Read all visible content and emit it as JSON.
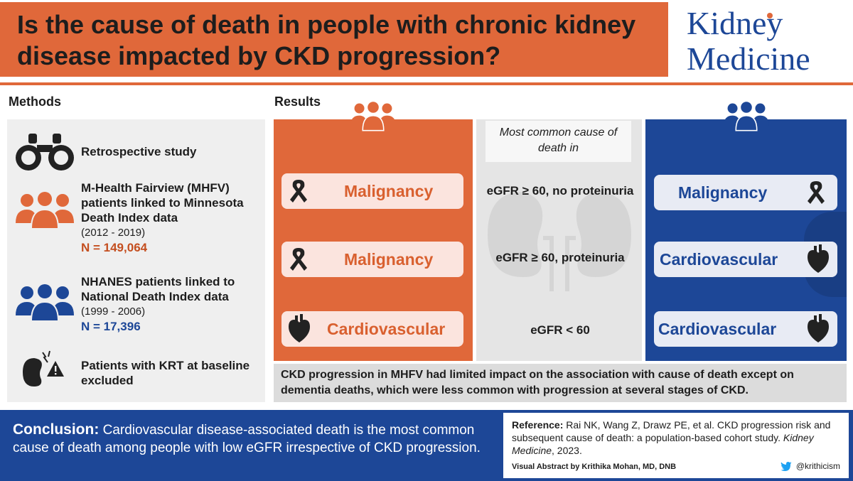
{
  "header": {
    "title": "Is the cause of death in people with chronic kidney disease impacted by CKD progression?",
    "logo_line1": "Kidney",
    "logo_line2": "Medicine"
  },
  "methods": {
    "label": "Methods",
    "items": [
      {
        "icon": "binoculars-icon",
        "text": "Retrospective study"
      },
      {
        "icon": "people-group-icon",
        "text": "M-Health Fairview (MHFV) patients linked to Minnesota Death Index data",
        "years": "(2012 - 2019)",
        "n": "N = 149,064",
        "color": "#e0683a"
      },
      {
        "icon": "people-group-icon",
        "text": "NHANES patients linked to National Death Index data",
        "years": "(1999 - 2006)",
        "n": "N = 17,396",
        "color": "#1d4797"
      },
      {
        "icon": "kidney-warning-icon",
        "text": "Patients with KRT at baseline excluded"
      }
    ]
  },
  "results": {
    "label": "Results",
    "center_note": "Most common cause of death in",
    "rows": [
      {
        "left": "Malignancy",
        "left_icon": "ribbon-icon",
        "middle": "eGFR ≥ 60, no proteinuria",
        "right": "Malignancy",
        "right_icon": "ribbon-icon"
      },
      {
        "left": "Malignancy",
        "left_icon": "ribbon-icon",
        "middle": "eGFR ≥ 60, proteinuria",
        "right": "Cardiovascular",
        "right_icon": "heart-icon"
      },
      {
        "left": "Cardiovascular",
        "left_icon": "heart-icon",
        "middle": "eGFR < 60",
        "right": "Cardiovascular",
        "right_icon": "heart-icon"
      }
    ],
    "finding": "CKD progression in MHFV had limited impact on the association with cause of death except on dementia deaths, which were less common with progression at several stages of CKD."
  },
  "conclusion": {
    "label": "Conclusion:",
    "text": "Cardiovascular disease-associated death is the most common cause of death among people with low eGFR irrespective of CKD progression."
  },
  "reference": {
    "label": "Reference:",
    "text": "Rai NK, Wang Z, Drawz PE, et al. CKD progression risk and subsequent cause of death: a population-based cohort study.",
    "journal": "Kidney Medicine",
    "year": ", 2023.",
    "visual_abstract": "Visual Abstract by Krithika Mohan, MD, DNB",
    "twitter": "@krithicism"
  },
  "colors": {
    "orange": "#e0683a",
    "blue": "#1d4797",
    "gray": "#e5e5e5"
  }
}
